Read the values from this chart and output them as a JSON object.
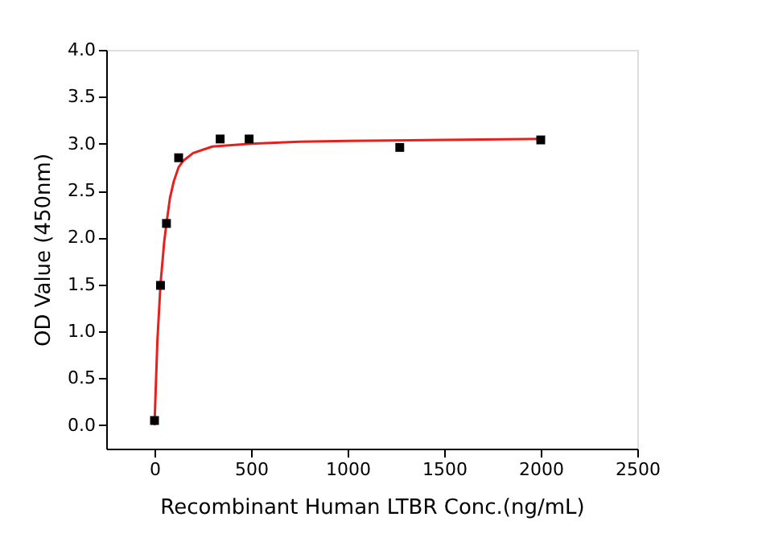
{
  "chart_data": {
    "type": "scatter",
    "xlabel": "Recombinant Human LTBR Conc.(ng/mL)",
    "ylabel": "OD Value (450nm)",
    "xlim": [
      -250,
      2500
    ],
    "xticks": [
      0,
      500,
      1000,
      1500,
      2000,
      2500
    ],
    "ylim": [
      -0.25,
      4.0
    ],
    "yticks": [
      {
        "value": 0,
        "label": "0.0"
      },
      0.5,
      {
        "value": 1,
        "label": "1.0"
      },
      1.5,
      {
        "value": 2,
        "label": "2.0"
      },
      2.5,
      {
        "value": 3,
        "label": "3.0"
      },
      3.5,
      {
        "value": 4,
        "label": "4.0"
      }
    ],
    "grid": false,
    "series": [
      {
        "type": "line",
        "color": "#e8201c",
        "marker": "none",
        "line_style": "solid",
        "x": [
          0,
          15,
          31,
          50,
          62,
          80,
          100,
          125,
          150,
          200,
          300,
          500,
          750,
          1000,
          1500,
          2000
        ],
        "values": [
          0.0,
          0.9,
          1.5,
          1.95,
          2.15,
          2.42,
          2.6,
          2.75,
          2.82,
          2.9,
          2.97,
          3.0,
          3.02,
          3.03,
          3.04,
          3.05
        ]
      },
      {
        "color": "#000000",
        "marker": "square",
        "x": [
          0,
          31,
          62,
          125,
          340,
          490,
          1270,
          2000
        ],
        "values": [
          0.05,
          1.49,
          2.15,
          2.85,
          3.05,
          3.05,
          2.96,
          3.04
        ]
      }
    ]
  }
}
